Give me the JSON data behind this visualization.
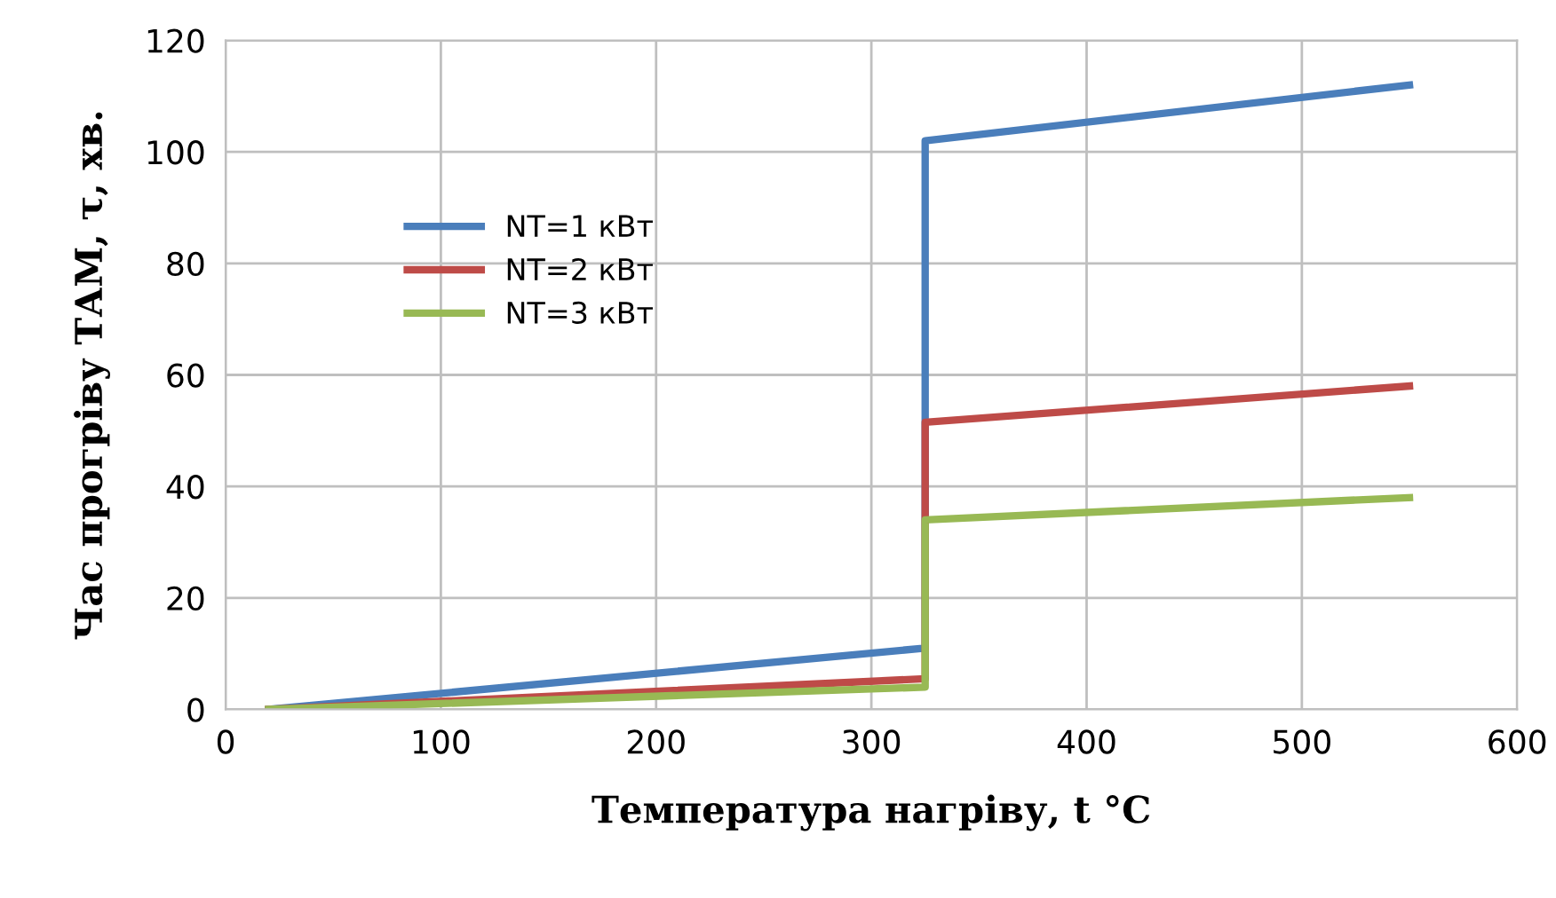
{
  "chart_data": {
    "type": "line",
    "xlabel": "Температура нагріву, t °C",
    "ylabel": "Час прогріву ТАМ, τ, хв.",
    "xlim": [
      0,
      600
    ],
    "ylim": [
      0,
      120
    ],
    "xticks": [
      0,
      100,
      200,
      300,
      400,
      500,
      600
    ],
    "yticks": [
      0,
      20,
      40,
      60,
      80,
      100,
      120
    ],
    "grid": true,
    "legend": "top left",
    "line_style": "solid",
    "marker": "none",
    "series": [
      {
        "name": "NT=1 кВт",
        "color": "#4a7ebb",
        "x": [
          20,
          325,
          325,
          550
        ],
        "values": [
          0,
          11,
          102,
          112
        ]
      },
      {
        "name": "NT=2 кВт",
        "color": "#be4b48",
        "x": [
          20,
          325,
          325,
          550
        ],
        "values": [
          0,
          5.5,
          51.5,
          58
        ]
      },
      {
        "name": "NT=3 кВт",
        "color": "#98b954",
        "x": [
          20,
          325,
          325,
          550
        ],
        "values": [
          0,
          4,
          34,
          38
        ]
      }
    ]
  }
}
